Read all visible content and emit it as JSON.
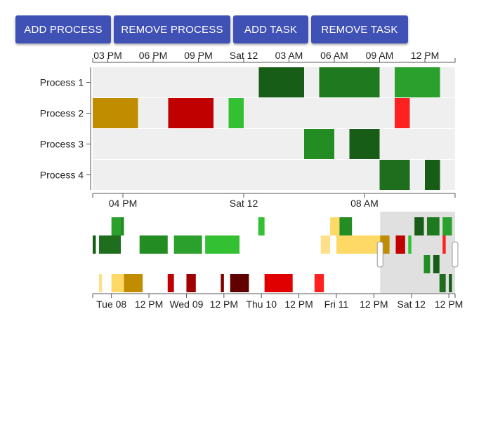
{
  "buttons": {
    "add_process": "ADD PROCESS",
    "remove_process": "REMOVE PROCESS",
    "add_task": "ADD TASK",
    "remove_task": "REMOVE TASK"
  },
  "colors": {
    "button": "#3f51b5",
    "row_background": "#efefef",
    "brush_selection": "#e0e0e0"
  },
  "chart_data": [
    {
      "type": "gantt",
      "role": "main-timeline",
      "x_unit": "hours",
      "x_domain": [
        "2017-08-11T14:00",
        "2017-08-12T14:00"
      ],
      "top_ticks": [
        "03 PM",
        "06 PM",
        "09 PM",
        "Sat 12",
        "03 AM",
        "06 AM",
        "09 AM",
        "12 PM"
      ],
      "bottom_ticks": [
        "04 PM",
        "Sat 12",
        "08 AM"
      ],
      "processes": [
        "Process 1",
        "Process 2",
        "Process 3",
        "Process 4"
      ],
      "tasks": [
        {
          "process": "Process 1",
          "start": "2017-08-12T01:00",
          "end": "2017-08-12T04:00",
          "color": "#175c17"
        },
        {
          "process": "Process 1",
          "start": "2017-08-12T05:00",
          "end": "2017-08-12T09:00",
          "color": "#1f7a1f"
        },
        {
          "process": "Process 1",
          "start": "2017-08-12T10:00",
          "end": "2017-08-12T13:00",
          "color": "#2ca02c"
        },
        {
          "process": "Process 2",
          "start": "2017-08-11T14:00",
          "end": "2017-08-11T17:00",
          "color": "#c08c00"
        },
        {
          "process": "Process 2",
          "start": "2017-08-11T19:00",
          "end": "2017-08-11T22:00",
          "color": "#c00000"
        },
        {
          "process": "Process 2",
          "start": "2017-08-11T23:00",
          "end": "2017-08-12T00:00",
          "color": "#33c033"
        },
        {
          "process": "Process 2",
          "start": "2017-08-12T10:00",
          "end": "2017-08-12T11:00",
          "color": "#ff2020"
        },
        {
          "process": "Process 3",
          "start": "2017-08-12T04:00",
          "end": "2017-08-12T06:00",
          "color": "#238c23"
        },
        {
          "process": "Process 3",
          "start": "2017-08-12T07:00",
          "end": "2017-08-12T09:00",
          "color": "#175c17"
        },
        {
          "process": "Process 4",
          "start": "2017-08-12T09:00",
          "end": "2017-08-12T11:00",
          "color": "#1e6e1e"
        },
        {
          "process": "Process 4",
          "start": "2017-08-12T12:00",
          "end": "2017-08-12T13:00",
          "color": "#175c17"
        }
      ]
    },
    {
      "type": "gantt",
      "role": "overview-brush",
      "x_unit": "hours",
      "x_domain": [
        "2017-08-07T18:00",
        "2017-08-12T14:00"
      ],
      "ticks": [
        "Tue 08",
        "12 PM",
        "Wed 09",
        "12 PM",
        "Thu 10",
        "12 PM",
        "Fri 11",
        "12 PM",
        "Sat 12",
        "12 PM"
      ],
      "brush_selection": [
        "2017-08-11T14:00",
        "2017-08-12T14:00"
      ],
      "lanes": 4,
      "tasks": [
        {
          "lane": 0,
          "start": "2017-08-08T00:00",
          "end": "2017-08-08T03:00",
          "color": "#2ca02c"
        },
        {
          "lane": 0,
          "start": "2017-08-08T03:00",
          "end": "2017-08-08T04:00",
          "color": "#238c23"
        },
        {
          "lane": 0,
          "start": "2017-08-09T23:00",
          "end": "2017-08-10T01:00",
          "color": "#33c033"
        },
        {
          "lane": 0,
          "start": "2017-08-10T22:00",
          "end": "2017-08-11T01:00",
          "color": "#ffd966"
        },
        {
          "lane": 0,
          "start": "2017-08-11T01:00",
          "end": "2017-08-11T05:00",
          "color": "#238c23"
        },
        {
          "lane": 0,
          "start": "2017-08-12T01:00",
          "end": "2017-08-12T04:00",
          "color": "#175c17"
        },
        {
          "lane": 0,
          "start": "2017-08-12T05:00",
          "end": "2017-08-12T09:00",
          "color": "#1f7a1f"
        },
        {
          "lane": 0,
          "start": "2017-08-12T10:00",
          "end": "2017-08-12T13:00",
          "color": "#2ca02c"
        },
        {
          "lane": 1,
          "start": "2017-08-07T18:00",
          "end": "2017-08-07T19:00",
          "color": "#175c17"
        },
        {
          "lane": 1,
          "start": "2017-08-07T20:00",
          "end": "2017-08-08T03:00",
          "color": "#1e6e1e"
        },
        {
          "lane": 1,
          "start": "2017-08-08T09:00",
          "end": "2017-08-08T18:00",
          "color": "#238c23"
        },
        {
          "lane": 1,
          "start": "2017-08-08T20:00",
          "end": "2017-08-09T05:00",
          "color": "#2ca02c"
        },
        {
          "lane": 1,
          "start": "2017-08-09T06:00",
          "end": "2017-08-09T17:00",
          "color": "#33c033"
        },
        {
          "lane": 1,
          "start": "2017-08-10T19:00",
          "end": "2017-08-10T22:00",
          "color": "#ffe08a"
        },
        {
          "lane": 1,
          "start": "2017-08-11T00:00",
          "end": "2017-08-11T14:00",
          "color": "#ffd966"
        },
        {
          "lane": 1,
          "start": "2017-08-11T14:00",
          "end": "2017-08-11T17:00",
          "color": "#c08c00"
        },
        {
          "lane": 1,
          "start": "2017-08-11T19:00",
          "end": "2017-08-11T22:00",
          "color": "#c00000"
        },
        {
          "lane": 1,
          "start": "2017-08-11T23:00",
          "end": "2017-08-12T00:00",
          "color": "#33c033"
        },
        {
          "lane": 1,
          "start": "2017-08-12T10:00",
          "end": "2017-08-12T11:00",
          "color": "#ff2020"
        },
        {
          "lane": 2,
          "start": "2017-08-12T04:00",
          "end": "2017-08-12T06:00",
          "color": "#238c23"
        },
        {
          "lane": 2,
          "start": "2017-08-12T07:00",
          "end": "2017-08-12T09:00",
          "color": "#175c17"
        },
        {
          "lane": 3,
          "start": "2017-08-07T20:00",
          "end": "2017-08-07T21:00",
          "color": "#ffe08a"
        },
        {
          "lane": 3,
          "start": "2017-08-08T00:00",
          "end": "2017-08-08T04:00",
          "color": "#ffd966"
        },
        {
          "lane": 3,
          "start": "2017-08-08T04:00",
          "end": "2017-08-08T10:00",
          "color": "#c08c00"
        },
        {
          "lane": 3,
          "start": "2017-08-08T18:00",
          "end": "2017-08-08T20:00",
          "color": "#c00000"
        },
        {
          "lane": 3,
          "start": "2017-08-09T00:00",
          "end": "2017-08-09T03:00",
          "color": "#a00000"
        },
        {
          "lane": 3,
          "start": "2017-08-09T11:00",
          "end": "2017-08-09T12:00",
          "color": "#800000"
        },
        {
          "lane": 3,
          "start": "2017-08-09T14:00",
          "end": "2017-08-09T20:00",
          "color": "#600000"
        },
        {
          "lane": 3,
          "start": "2017-08-10T01:00",
          "end": "2017-08-10T10:00",
          "color": "#e00000"
        },
        {
          "lane": 3,
          "start": "2017-08-10T17:00",
          "end": "2017-08-10T20:00",
          "color": "#ff2020"
        },
        {
          "lane": 3,
          "start": "2017-08-12T09:00",
          "end": "2017-08-12T11:00",
          "color": "#1e6e1e"
        },
        {
          "lane": 3,
          "start": "2017-08-12T12:00",
          "end": "2017-08-12T13:00",
          "color": "#175c17"
        }
      ]
    }
  ]
}
